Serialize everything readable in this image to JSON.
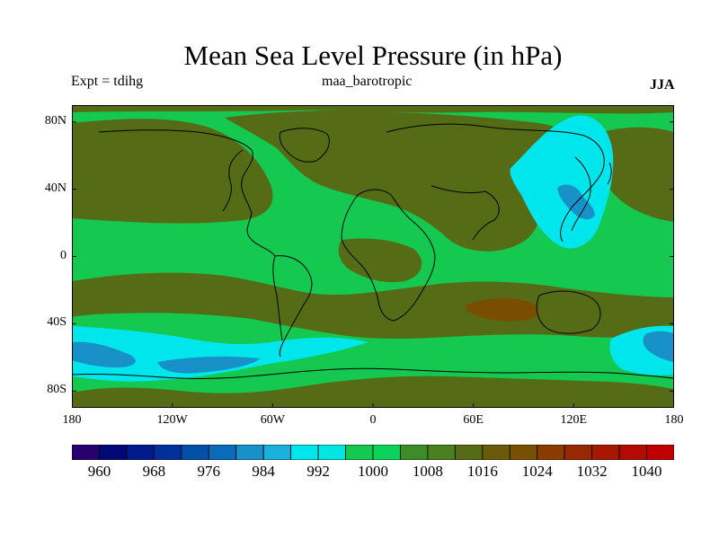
{
  "title": "Mean Sea Level Pressure (in hPa)",
  "left_label": "Expt = tdihg",
  "center_label": "maa_barotropic",
  "right_label": "JJA",
  "lat_ticks": [
    {
      "label": "80N",
      "value": 80
    },
    {
      "label": "40N",
      "value": 40
    },
    {
      "label": "0",
      "value": 0
    },
    {
      "label": "40S",
      "value": -40
    },
    {
      "label": "80S",
      "value": -80
    }
  ],
  "lon_ticks": [
    {
      "label": "180",
      "value": -180
    },
    {
      "label": "120W",
      "value": -120
    },
    {
      "label": "60W",
      "value": -60
    },
    {
      "label": "0",
      "value": 0
    },
    {
      "label": "60E",
      "value": 60
    },
    {
      "label": "120E",
      "value": 120
    },
    {
      "label": "180",
      "value": 180
    }
  ],
  "colorbar": {
    "unit": "hPa",
    "min": 956,
    "max": 1044,
    "step": 4,
    "colors": [
      "#28006e",
      "#000878",
      "#001a8c",
      "#00309c",
      "#0050a8",
      "#0a6cb8",
      "#1890c8",
      "#1ab0dc",
      "#00e6ec",
      "#00e6e0",
      "#14c850",
      "#0ad25a",
      "#3c8c28",
      "#4a8020",
      "#566b16",
      "#6b5a0a",
      "#7a5000",
      "#8a3c00",
      "#982800",
      "#a81800",
      "#b40a00",
      "#c00000"
    ],
    "labels": [
      "960",
      "968",
      "976",
      "984",
      "992",
      "1000",
      "1008",
      "1016",
      "1024",
      "1032",
      "1040"
    ]
  },
  "map_colors": {
    "green": "#14c850",
    "olive": "#566b16",
    "cyan": "#00e6ec",
    "blue": "#1890c8",
    "brown": "#7a4e00"
  }
}
